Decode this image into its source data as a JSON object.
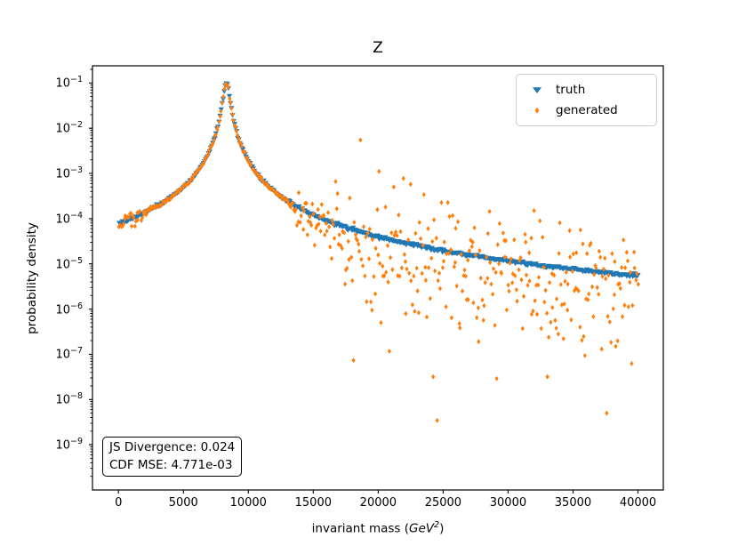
{
  "chart_data": {
    "type": "scatter",
    "title": "Z",
    "xlabel": {
      "pre": "invariant mass (",
      "math": "GeV",
      "sup": "2",
      "post": ")"
    },
    "ylabel": "probability density",
    "xlim": [
      -2000,
      41950
    ],
    "ylim_log": [
      1e-10,
      0.24
    ],
    "x_ticks": [
      0,
      5000,
      10000,
      15000,
      20000,
      25000,
      30000,
      35000,
      40000
    ],
    "y_tick_exponents": [
      -1,
      -2,
      -3,
      -4,
      -5,
      -6,
      -7,
      -8,
      -9
    ],
    "grid": false,
    "legend_position": "upper right",
    "annotation": {
      "line1": "JS Divergence: 0.024",
      "line2": "CDF MSE: 4.771e-03"
    },
    "distribution": {
      "form": "relativistic_breit_wigner",
      "peak_mass2_gev2": 8315,
      "width_term": 51756,
      "peak_density": 0.105
    },
    "truth_curve_samples": [
      [
        0,
        7.9e-05
      ],
      [
        2000,
        0.00014
      ],
      [
        5000,
        0.00049
      ],
      [
        8315,
        0.105
      ],
      [
        12000,
        0.0004
      ],
      [
        15000,
        0.00012
      ],
      [
        20000,
        4e-05
      ],
      [
        25000,
        2e-05
      ],
      [
        30000,
        1.2e-05
      ],
      [
        35000,
        7.6e-06
      ],
      [
        40000,
        5.4e-06
      ]
    ],
    "series": [
      {
        "name": "truth",
        "marker": "triangle-down",
        "color": "#1f77b4",
        "n_points": 500,
        "x_range": [
          60,
          40000
        ],
        "jitter_dex": 0.016,
        "seed": 1234567
      },
      {
        "name": "generated",
        "marker": "thin-diamond",
        "color": "#ff7f0e",
        "n_points": 500,
        "x_range": [
          60,
          40000
        ],
        "seed": 987654,
        "noise_model": {
          "core_sigma_dex": 0.08,
          "core_end": 2500,
          "mid_sigma_dex": 0.02,
          "tail_start": 12500,
          "tail_ramp": 5500,
          "tail_sigma_dex": 0.68,
          "tail_bias_dex": -0.22,
          "outlier_start": 17000,
          "outlier_prob": 0.07,
          "outlier_extra_dex": [
            0.3,
            2.9
          ],
          "floor": 2.2e-10
        }
      }
    ]
  }
}
